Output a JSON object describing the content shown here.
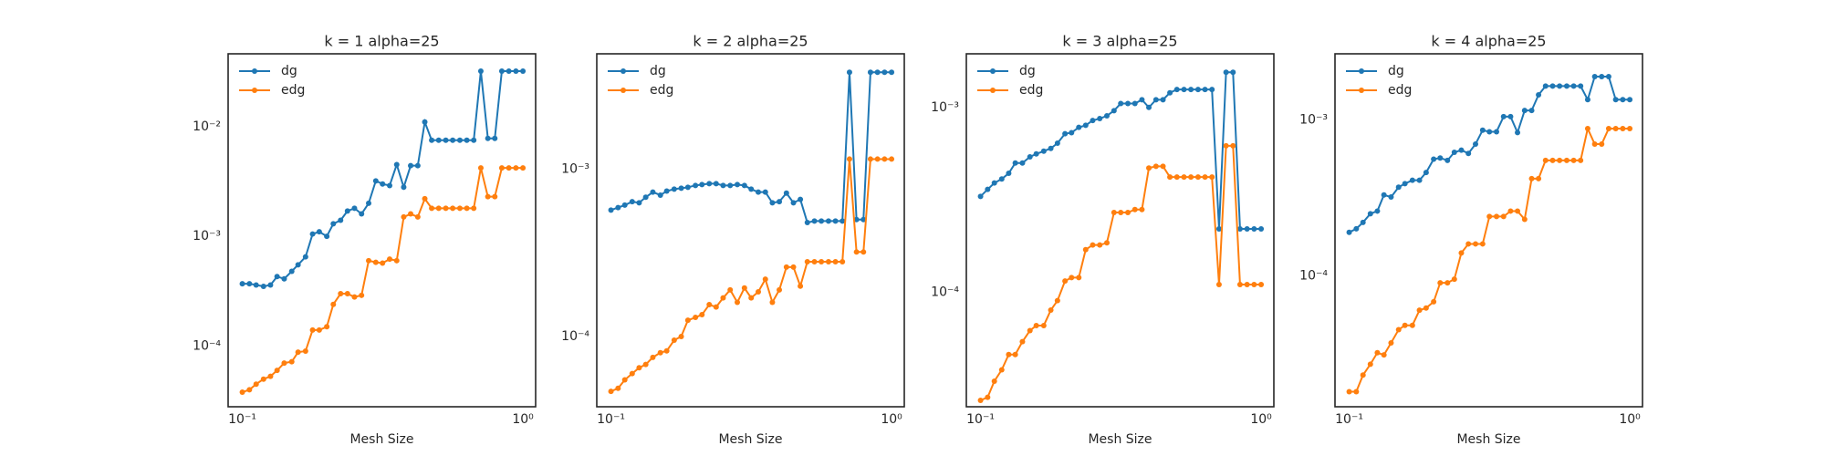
{
  "chart_data": [
    {
      "type": "line",
      "title": "k = 1 alpha=25",
      "xlabel": "Mesh Size",
      "xscale": "log",
      "yscale": "log",
      "legend": "upper left",
      "x": [
        0.1,
        0.106,
        0.112,
        0.119,
        0.126,
        0.133,
        0.141,
        0.15,
        0.158,
        0.168,
        0.178,
        0.188,
        0.2,
        0.211,
        0.224,
        0.237,
        0.251,
        0.266,
        0.282,
        0.299,
        0.316,
        0.335,
        0.355,
        0.376,
        0.398,
        0.422,
        0.447,
        0.473,
        0.501,
        0.531,
        0.562,
        0.596,
        0.631,
        0.668,
        0.708,
        0.75,
        0.794,
        0.841,
        0.891,
        0.944,
        1.0
      ],
      "xlim": [
        0.089,
        1.11
      ],
      "ylim": [
        2.8e-05,
        0.046
      ],
      "xticks": [
        {
          "value": 0.1,
          "label": "10⁻¹"
        },
        {
          "value": 1,
          "label": "10⁰"
        }
      ],
      "yticks": [
        {
          "value": 0.0001,
          "label": "10⁻⁴"
        },
        {
          "value": 0.001,
          "label": "10⁻³"
        },
        {
          "value": 0.01,
          "label": "10⁻²"
        }
      ],
      "series": [
        {
          "name": "dg",
          "color": "#1f77b4",
          "values": [
            0.00037,
            0.00037,
            0.00036,
            0.00035,
            0.00036,
            0.00043,
            0.00041,
            0.00048,
            0.00055,
            0.00065,
            0.00105,
            0.0011,
            0.001,
            0.0013,
            0.0014,
            0.0017,
            0.0018,
            0.0016,
            0.002,
            0.0032,
            0.003,
            0.0029,
            0.0045,
            0.0028,
            0.0044,
            0.0044,
            0.011,
            0.0075,
            0.0075,
            0.0075,
            0.0075,
            0.0075,
            0.0075,
            0.0075,
            0.032,
            0.0078,
            0.0078,
            0.032,
            0.032,
            0.032,
            0.032
          ]
        },
        {
          "name": "edg",
          "color": "#ff7f0e",
          "values": [
            3.8e-05,
            4e-05,
            4.5e-05,
            5e-05,
            5.3e-05,
            6e-05,
            7e-05,
            7.2e-05,
            8.8e-05,
            9e-05,
            0.00014,
            0.00014,
            0.00015,
            0.00024,
            0.0003,
            0.0003,
            0.00028,
            0.00029,
            0.0006,
            0.00058,
            0.00057,
            0.00062,
            0.0006,
            0.0015,
            0.0016,
            0.0015,
            0.0022,
            0.0018,
            0.0018,
            0.0018,
            0.0018,
            0.0018,
            0.0018,
            0.0018,
            0.0042,
            0.0023,
            0.0023,
            0.0042,
            0.0042,
            0.0042,
            0.0042
          ]
        }
      ]
    },
    {
      "type": "line",
      "title": "k = 2 alpha=25",
      "xlabel": "Mesh Size",
      "xscale": "log",
      "yscale": "log",
      "legend": "upper left",
      "x": [
        0.1,
        0.106,
        0.112,
        0.119,
        0.126,
        0.133,
        0.141,
        0.15,
        0.158,
        0.168,
        0.178,
        0.188,
        0.2,
        0.211,
        0.224,
        0.237,
        0.251,
        0.266,
        0.282,
        0.299,
        0.316,
        0.335,
        0.355,
        0.376,
        0.398,
        0.422,
        0.447,
        0.473,
        0.501,
        0.531,
        0.562,
        0.596,
        0.631,
        0.668,
        0.708,
        0.75,
        0.794,
        0.841,
        0.891,
        0.944,
        1.0
      ],
      "xlim": [
        0.089,
        1.11
      ],
      "ylim": [
        3.8e-05,
        0.0049
      ],
      "xticks": [
        {
          "value": 0.1,
          "label": "10⁻¹"
        },
        {
          "value": 1,
          "label": "10⁰"
        }
      ],
      "yticks": [
        {
          "value": 0.0001,
          "label": "10⁻⁴"
        },
        {
          "value": 0.001,
          "label": "10⁻³"
        }
      ],
      "series": [
        {
          "name": "dg",
          "color": "#1f77b4",
          "values": [
            0.00057,
            0.00059,
            0.00061,
            0.00064,
            0.00063,
            0.00068,
            0.00073,
            0.0007,
            0.00074,
            0.00076,
            0.00077,
            0.00078,
            0.0008,
            0.00081,
            0.00082,
            0.00082,
            0.0008,
            0.0008,
            0.00081,
            0.0008,
            0.00076,
            0.00073,
            0.00073,
            0.00063,
            0.00064,
            0.00072,
            0.00063,
            0.00066,
            0.00048,
            0.00049,
            0.00049,
            0.00049,
            0.00049,
            0.00049,
            0.0038,
            0.0005,
            0.0005,
            0.0038,
            0.0038,
            0.0038,
            0.0038
          ]
        },
        {
          "name": "edg",
          "color": "#ff7f0e",
          "values": [
            4.7e-05,
            4.9e-05,
            5.5e-05,
            6e-05,
            6.5e-05,
            6.8e-05,
            7.5e-05,
            8e-05,
            8.2e-05,
            9.5e-05,
            0.0001,
            0.000125,
            0.00013,
            0.000135,
            0.000155,
            0.00015,
            0.00017,
            0.00019,
            0.00016,
            0.000195,
            0.00017,
            0.000185,
            0.00022,
            0.00016,
            0.00019,
            0.00026,
            0.00026,
            0.0002,
            0.00028,
            0.00028,
            0.00028,
            0.00028,
            0.00028,
            0.00028,
            0.00115,
            0.00032,
            0.00032,
            0.00115,
            0.00115,
            0.00115,
            0.00115
          ]
        }
      ]
    },
    {
      "type": "line",
      "title": "k = 3 alpha=25",
      "xlabel": "Mesh Size",
      "xscale": "log",
      "yscale": "log",
      "legend": "upper left",
      "x": [
        0.1,
        0.106,
        0.112,
        0.119,
        0.126,
        0.133,
        0.141,
        0.15,
        0.158,
        0.168,
        0.178,
        0.188,
        0.2,
        0.211,
        0.224,
        0.237,
        0.251,
        0.266,
        0.282,
        0.299,
        0.316,
        0.335,
        0.355,
        0.376,
        0.398,
        0.422,
        0.447,
        0.473,
        0.501,
        0.531,
        0.562,
        0.596,
        0.631,
        0.668,
        0.708,
        0.75,
        0.794,
        0.841,
        0.891,
        0.944,
        1.0
      ],
      "xlim": [
        0.089,
        1.11
      ],
      "ylim": [
        2.4e-05,
        0.00195
      ],
      "xticks": [
        {
          "value": 0.1,
          "label": "10⁻¹"
        },
        {
          "value": 1,
          "label": "10⁰"
        }
      ],
      "yticks": [
        {
          "value": 0.0001,
          "label": "10⁻⁴"
        },
        {
          "value": 0.001,
          "label": "10⁻³"
        }
      ],
      "series": [
        {
          "name": "dg",
          "color": "#1f77b4",
          "values": [
            0.00033,
            0.00036,
            0.00039,
            0.00041,
            0.00044,
            0.0005,
            0.0005,
            0.00054,
            0.00056,
            0.00058,
            0.0006,
            0.00064,
            0.00072,
            0.00073,
            0.00078,
            0.0008,
            0.00085,
            0.00087,
            0.0009,
            0.00096,
            0.00105,
            0.00105,
            0.00105,
            0.0011,
            0.001,
            0.0011,
            0.0011,
            0.0012,
            0.00125,
            0.00125,
            0.00125,
            0.00125,
            0.00125,
            0.00125,
            0.00022,
            0.00155,
            0.00155,
            0.00022,
            0.00022,
            0.00022,
            0.00022
          ]
        },
        {
          "name": "edg",
          "color": "#ff7f0e",
          "values": [
            2.6e-05,
            2.7e-05,
            3.3e-05,
            3.8e-05,
            4.6e-05,
            4.6e-05,
            5.4e-05,
            6.2e-05,
            6.6e-05,
            6.6e-05,
            8e-05,
            9e-05,
            0.000115,
            0.00012,
            0.00012,
            0.00017,
            0.00018,
            0.00018,
            0.000185,
            0.00027,
            0.00027,
            0.00027,
            0.00028,
            0.00028,
            0.00047,
            0.00048,
            0.00048,
            0.00042,
            0.00042,
            0.00042,
            0.00042,
            0.00042,
            0.00042,
            0.00042,
            0.00011,
            0.00062,
            0.00062,
            0.00011,
            0.00011,
            0.00011,
            0.00011
          ]
        }
      ]
    },
    {
      "type": "line",
      "title": "k = 4 alpha=25",
      "xlabel": "Mesh Size",
      "xscale": "log",
      "yscale": "log",
      "legend": "upper left",
      "x": [
        0.1,
        0.106,
        0.112,
        0.119,
        0.126,
        0.133,
        0.141,
        0.15,
        0.158,
        0.168,
        0.178,
        0.188,
        0.2,
        0.211,
        0.224,
        0.237,
        0.251,
        0.266,
        0.282,
        0.299,
        0.316,
        0.335,
        0.355,
        0.376,
        0.398,
        0.422,
        0.447,
        0.473,
        0.501,
        0.531,
        0.562,
        0.596,
        0.631,
        0.668,
        0.708,
        0.75,
        0.794,
        0.841,
        0.891,
        0.944,
        1.0
      ],
      "xlim": [
        0.089,
        1.11
      ],
      "ylim": [
        1.44e-05,
        0.00266
      ],
      "xticks": [
        {
          "value": 0.1,
          "label": "10⁻¹"
        },
        {
          "value": 1,
          "label": "10⁰"
        }
      ],
      "yticks": [
        {
          "value": 0.0001,
          "label": "10⁻⁴"
        },
        {
          "value": 0.001,
          "label": "10⁻³"
        }
      ],
      "series": [
        {
          "name": "dg",
          "color": "#1f77b4",
          "values": [
            0.00019,
            0.0002,
            0.00022,
            0.00025,
            0.00026,
            0.00033,
            0.00032,
            0.00037,
            0.00039,
            0.00041,
            0.00041,
            0.00046,
            0.00056,
            0.00057,
            0.00055,
            0.00062,
            0.00064,
            0.00061,
            0.0007,
            0.00086,
            0.00084,
            0.00084,
            0.00105,
            0.00105,
            0.00083,
            0.00115,
            0.00115,
            0.00145,
            0.00165,
            0.00165,
            0.00165,
            0.00165,
            0.00165,
            0.00165,
            0.00135,
            0.0019,
            0.0019,
            0.0019,
            0.00135,
            0.00135,
            0.00135
          ]
        },
        {
          "name": "edg",
          "color": "#ff7f0e",
          "values": [
            1.8e-05,
            1.8e-05,
            2.3e-05,
            2.7e-05,
            3.2e-05,
            3.1e-05,
            3.7e-05,
            4.5e-05,
            4.8e-05,
            4.8e-05,
            6e-05,
            6.2e-05,
            6.8e-05,
            9e-05,
            9e-05,
            9.5e-05,
            0.00014,
            0.00016,
            0.00016,
            0.00016,
            0.00024,
            0.00024,
            0.00024,
            0.00026,
            0.00026,
            0.00023,
            0.00042,
            0.00042,
            0.00055,
            0.00055,
            0.00055,
            0.00055,
            0.00055,
            0.00055,
            0.00088,
            0.0007,
            0.0007,
            0.00088,
            0.00088,
            0.00088,
            0.00088
          ]
        }
      ]
    }
  ]
}
